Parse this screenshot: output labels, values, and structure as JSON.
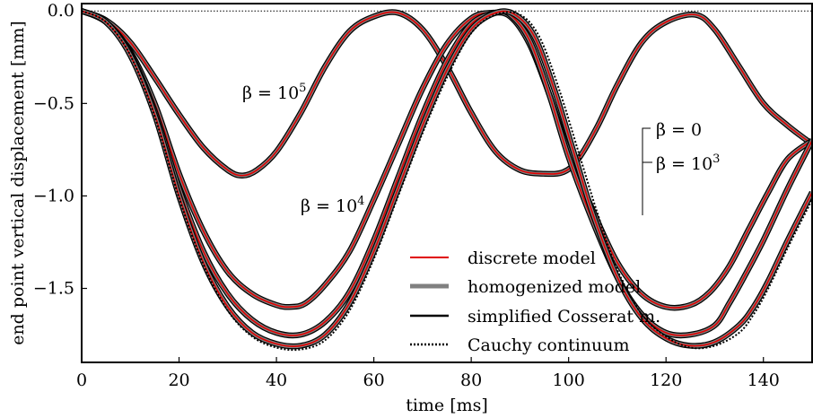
{
  "chart_data": {
    "type": "line",
    "title": "",
    "xlabel": "time [ms]",
    "ylabel": "end point vertical displacement [mm]",
    "xlim": [
      0,
      150
    ],
    "ylim": [
      -1.9,
      0.04
    ],
    "xticks": [
      0,
      20,
      40,
      60,
      80,
      100,
      120,
      140
    ],
    "yticks": [
      0.0,
      -0.5,
      -1.0,
      -1.5
    ],
    "ytick_labels": [
      "0.0",
      "−0.5",
      "−1.0",
      "−1.5"
    ],
    "grid": false,
    "reference_line": {
      "y": 0.0,
      "style": "dotted"
    },
    "legend": {
      "position": "lower-center",
      "entries": [
        {
          "label": "discrete model",
          "color": "#e00000",
          "style": "solid-thin"
        },
        {
          "label": "homogenized model",
          "color": "#808080",
          "style": "solid-thick"
        },
        {
          "label": "simplified Cosserat m.",
          "color": "#000000",
          "style": "solid"
        },
        {
          "label": "Cauchy continuum",
          "color": "#000000",
          "style": "dotted"
        }
      ]
    },
    "annotations": {
      "beta5": {
        "base": "β = 10",
        "exp": "5"
      },
      "beta4": {
        "base": "β = 10",
        "exp": "4"
      },
      "beta0": {
        "text": "β = 0"
      },
      "beta3": {
        "base": "β = 10",
        "exp": "3"
      }
    },
    "series": [
      {
        "beta": "10^5",
        "x": [
          0,
          5,
          10,
          15,
          20,
          25,
          30,
          33,
          36,
          40,
          45,
          50,
          55,
          60,
          65,
          70,
          75,
          80,
          85,
          90,
          95,
          99,
          102,
          106,
          110,
          115,
          120,
          126,
          130,
          135,
          140,
          145,
          150
        ],
        "y": [
          0.0,
          -0.05,
          -0.17,
          -0.36,
          -0.56,
          -0.74,
          -0.86,
          -0.89,
          -0.86,
          -0.76,
          -0.55,
          -0.3,
          -0.11,
          -0.03,
          -0.01,
          -0.1,
          -0.3,
          -0.55,
          -0.76,
          -0.86,
          -0.88,
          -0.87,
          -0.8,
          -0.62,
          -0.4,
          -0.17,
          -0.06,
          -0.02,
          -0.1,
          -0.3,
          -0.5,
          -0.62,
          -0.72
        ]
      },
      {
        "beta": "10^4",
        "x": [
          0,
          5,
          10,
          15,
          20,
          25,
          30,
          35,
          40,
          43,
          46,
          50,
          55,
          60,
          65,
          70,
          75,
          80,
          84,
          88,
          92,
          96,
          100,
          105,
          110,
          115,
          120,
          125,
          129,
          133,
          137,
          141,
          145,
          150
        ],
        "y": [
          0.0,
          -0.06,
          -0.22,
          -0.5,
          -0.88,
          -1.19,
          -1.41,
          -1.53,
          -1.59,
          -1.6,
          -1.58,
          -1.48,
          -1.3,
          -1.02,
          -0.72,
          -0.42,
          -0.18,
          -0.04,
          -0.01,
          -0.03,
          -0.18,
          -0.45,
          -0.76,
          -1.08,
          -1.36,
          -1.53,
          -1.6,
          -1.59,
          -1.52,
          -1.38,
          -1.18,
          -0.98,
          -0.8,
          -0.7
        ]
      },
      {
        "beta": "10^3",
        "x": [
          0,
          5,
          10,
          15,
          20,
          25,
          30,
          35,
          40,
          45,
          50,
          55,
          60,
          65,
          70,
          75,
          80,
          85,
          88,
          92,
          96,
          100,
          105,
          110,
          115,
          120,
          125,
          130,
          133,
          136,
          140,
          145,
          150
        ],
        "y": [
          0.0,
          -0.06,
          -0.23,
          -0.54,
          -0.96,
          -1.3,
          -1.53,
          -1.67,
          -1.74,
          -1.75,
          -1.68,
          -1.52,
          -1.24,
          -0.9,
          -0.56,
          -0.27,
          -0.07,
          -0.01,
          -0.02,
          -0.16,
          -0.45,
          -0.79,
          -1.14,
          -1.44,
          -1.64,
          -1.74,
          -1.75,
          -1.7,
          -1.58,
          -1.44,
          -1.24,
          -0.96,
          -0.7
        ]
      },
      {
        "beta": "0",
        "x": [
          0,
          5,
          10,
          15,
          20,
          25,
          30,
          35,
          40,
          45,
          50,
          55,
          60,
          65,
          70,
          75,
          80,
          85,
          89,
          93,
          97,
          101,
          105,
          110,
          115,
          120,
          125,
          130,
          135,
          138,
          141,
          145,
          150
        ],
        "y": [
          0.0,
          -0.06,
          -0.24,
          -0.56,
          -1.0,
          -1.36,
          -1.6,
          -1.74,
          -1.8,
          -1.81,
          -1.75,
          -1.58,
          -1.3,
          -0.96,
          -0.62,
          -0.32,
          -0.1,
          -0.01,
          -0.02,
          -0.14,
          -0.42,
          -0.76,
          -1.1,
          -1.44,
          -1.66,
          -1.77,
          -1.81,
          -1.79,
          -1.7,
          -1.6,
          -1.46,
          -1.24,
          -0.98
        ]
      },
      {
        "beta": "Cauchy",
        "x": [
          0,
          5,
          10,
          15,
          20,
          25,
          30,
          35,
          40,
          45,
          50,
          55,
          60,
          65,
          70,
          75,
          80,
          85,
          90,
          94,
          98,
          102,
          106,
          110,
          115,
          120,
          125,
          130,
          135,
          138,
          141,
          145,
          150
        ],
        "y": [
          0.0,
          -0.06,
          -0.24,
          -0.57,
          -1.01,
          -1.37,
          -1.62,
          -1.76,
          -1.82,
          -1.83,
          -1.78,
          -1.62,
          -1.34,
          -1.0,
          -0.66,
          -0.36,
          -0.12,
          -0.02,
          -0.02,
          -0.14,
          -0.42,
          -0.76,
          -1.1,
          -1.4,
          -1.64,
          -1.76,
          -1.82,
          -1.81,
          -1.74,
          -1.64,
          -1.5,
          -1.28,
          -1.02
        ]
      }
    ]
  }
}
